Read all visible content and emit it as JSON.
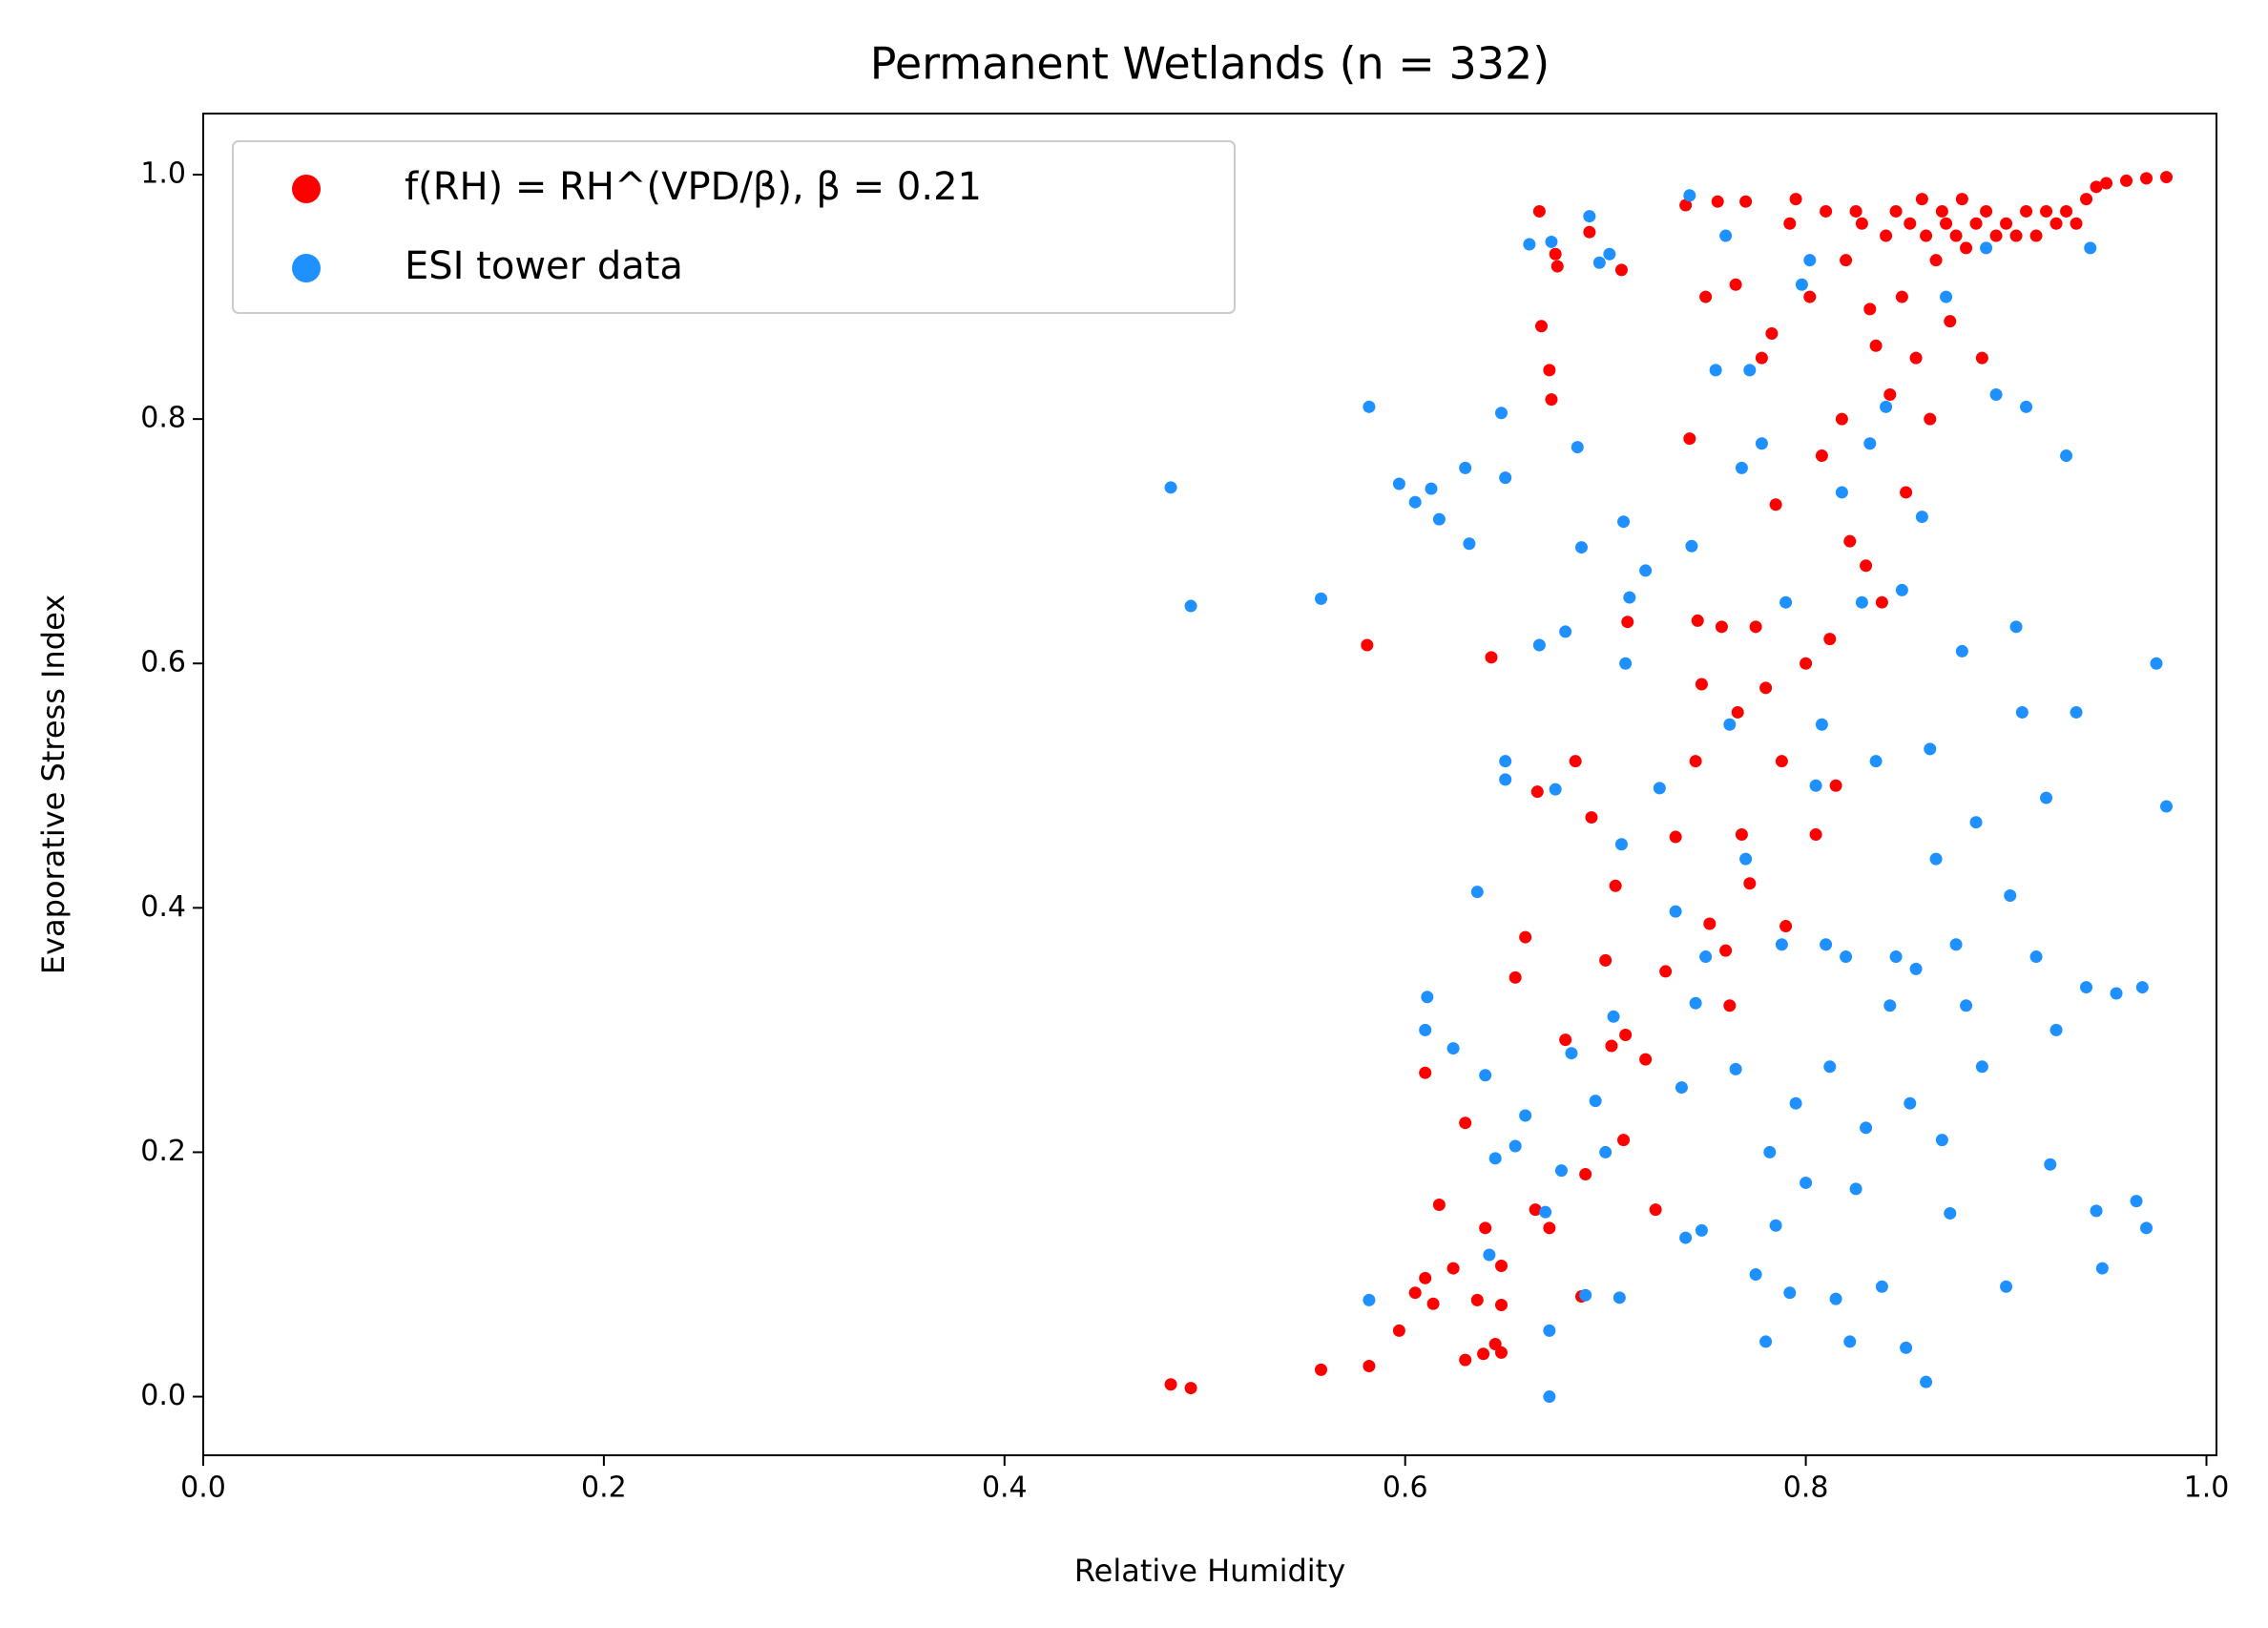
{
  "chart_data": {
    "type": "scatter",
    "title": "Permanent Wetlands (n = 332)",
    "x_label": "Relative Humidity",
    "y_label": "Evaporative Stress Index",
    "xlim": [
      0,
      1.005
    ],
    "ylim": [
      -0.048,
      1.05
    ],
    "xticks": [
      {
        "value": 0,
        "label": "0.0"
      },
      0.2,
      0.4,
      0.6,
      0.8,
      {
        "value": 1,
        "label": "1.0"
      }
    ],
    "yticks": [
      {
        "value": 0,
        "label": "0.0"
      },
      0.2,
      0.4,
      0.6,
      0.8,
      {
        "value": 1,
        "label": "1.0"
      }
    ],
    "grid": false,
    "legend": "upper left",
    "series": [
      {
        "name": "f(RH) = RH^(VPD/β), β = 0.21",
        "color": "#ff0000",
        "x": [
          0.483,
          0.493,
          0.558,
          0.582,
          0.581,
          0.597,
          0.605,
          0.61,
          0.61,
          0.614,
          0.617,
          0.624,
          0.63,
          0.63,
          0.636,
          0.639,
          0.64,
          0.643,
          0.645,
          0.648,
          0.648,
          0.648,
          0.655,
          0.66,
          0.665,
          0.666,
          0.667,
          0.668,
          0.672,
          0.672,
          0.673,
          0.675,
          0.676,
          0.68,
          0.685,
          0.688,
          0.69,
          0.692,
          0.693,
          0.7,
          0.703,
          0.705,
          0.708,
          0.709,
          0.71,
          0.711,
          0.72,
          0.725,
          0.73,
          0.735,
          0.74,
          0.742,
          0.745,
          0.746,
          0.748,
          0.75,
          0.752,
          0.756,
          0.758,
          0.76,
          0.762,
          0.765,
          0.766,
          0.768,
          0.77,
          0.772,
          0.775,
          0.778,
          0.78,
          0.783,
          0.785,
          0.788,
          0.79,
          0.792,
          0.795,
          0.8,
          0.802,
          0.805,
          0.808,
          0.81,
          0.812,
          0.815,
          0.818,
          0.82,
          0.822,
          0.825,
          0.828,
          0.83,
          0.832,
          0.835,
          0.838,
          0.84,
          0.842,
          0.845,
          0.848,
          0.85,
          0.852,
          0.855,
          0.858,
          0.86,
          0.862,
          0.865,
          0.868,
          0.87,
          0.872,
          0.875,
          0.878,
          0.88,
          0.885,
          0.888,
          0.89,
          0.895,
          0.9,
          0.905,
          0.91,
          0.915,
          0.92,
          0.925,
          0.93,
          0.935,
          0.94,
          0.945,
          0.95,
          0.96,
          0.97,
          0.98
        ],
        "values": [
          0.01,
          0.007,
          0.022,
          0.025,
          0.615,
          0.054,
          0.085,
          0.097,
          0.265,
          0.076,
          0.157,
          0.105,
          0.224,
          0.03,
          0.079,
          0.035,
          0.138,
          0.605,
          0.043,
          0.036,
          0.075,
          0.107,
          0.343,
          0.376,
          0.153,
          0.495,
          0.97,
          0.876,
          0.138,
          0.84,
          0.816,
          0.935,
          0.925,
          0.292,
          0.52,
          0.082,
          0.182,
          0.953,
          0.474,
          0.357,
          0.287,
          0.418,
          0.922,
          0.21,
          0.296,
          0.634,
          0.276,
          0.153,
          0.348,
          0.458,
          0.975,
          0.784,
          0.52,
          0.635,
          0.583,
          0.9,
          0.387,
          0.978,
          0.63,
          0.365,
          0.32,
          0.91,
          0.56,
          0.46,
          0.978,
          0.42,
          0.63,
          0.85,
          0.58,
          0.87,
          0.73,
          0.52,
          0.385,
          0.96,
          0.98,
          0.6,
          0.9,
          0.46,
          0.77,
          0.97,
          0.62,
          0.5,
          0.8,
          0.93,
          0.7,
          0.97,
          0.96,
          0.68,
          0.89,
          0.86,
          0.65,
          0.95,
          0.82,
          0.97,
          0.9,
          0.74,
          0.96,
          0.85,
          0.98,
          0.95,
          0.8,
          0.93,
          0.97,
          0.96,
          0.88,
          0.95,
          0.98,
          0.94,
          0.96,
          0.85,
          0.97,
          0.95,
          0.96,
          0.95,
          0.97,
          0.95,
          0.97,
          0.96,
          0.97,
          0.96,
          0.98,
          0.99,
          0.993,
          0.995,
          0.997,
          0.998
        ]
      },
      {
        "name": "ESI tower data",
        "color": "#1e90ff",
        "x": [
          0.483,
          0.493,
          0.558,
          0.582,
          0.582,
          0.597,
          0.605,
          0.61,
          0.611,
          0.613,
          0.617,
          0.624,
          0.63,
          0.632,
          0.636,
          0.64,
          0.642,
          0.645,
          0.648,
          0.65,
          0.65,
          0.65,
          0.655,
          0.66,
          0.662,
          0.667,
          0.67,
          0.672,
          0.672,
          0.673,
          0.675,
          0.678,
          0.68,
          0.683,
          0.686,
          0.688,
          0.69,
          0.692,
          0.695,
          0.697,
          0.7,
          0.702,
          0.704,
          0.707,
          0.708,
          0.709,
          0.71,
          0.712,
          0.72,
          0.727,
          0.735,
          0.738,
          0.74,
          0.742,
          0.743,
          0.745,
          0.748,
          0.75,
          0.755,
          0.76,
          0.762,
          0.765,
          0.768,
          0.77,
          0.772,
          0.775,
          0.778,
          0.78,
          0.782,
          0.785,
          0.788,
          0.79,
          0.792,
          0.795,
          0.798,
          0.8,
          0.802,
          0.805,
          0.808,
          0.81,
          0.812,
          0.815,
          0.818,
          0.82,
          0.822,
          0.825,
          0.828,
          0.83,
          0.832,
          0.835,
          0.838,
          0.84,
          0.842,
          0.845,
          0.848,
          0.85,
          0.852,
          0.855,
          0.858,
          0.86,
          0.862,
          0.865,
          0.868,
          0.87,
          0.872,
          0.875,
          0.878,
          0.88,
          0.885,
          0.888,
          0.89,
          0.895,
          0.9,
          0.902,
          0.905,
          0.908,
          0.91,
          0.915,
          0.92,
          0.922,
          0.925,
          0.93,
          0.935,
          0.94,
          0.942,
          0.945,
          0.948,
          0.955,
          0.965,
          0.968,
          0.97,
          0.975,
          0.98
        ],
        "values": [
          0.744,
          0.647,
          0.653,
          0.079,
          0.81,
          0.747,
          0.732,
          0.3,
          0.327,
          0.743,
          0.718,
          0.285,
          0.76,
          0.698,
          0.413,
          0.263,
          0.116,
          0.195,
          0.805,
          0.52,
          0.505,
          0.752,
          0.205,
          0.23,
          0.943,
          0.615,
          0.151,
          0.054,
          0.0,
          0.945,
          0.497,
          0.185,
          0.626,
          0.281,
          0.777,
          0.695,
          0.083,
          0.966,
          0.242,
          0.928,
          0.2,
          0.935,
          0.311,
          0.081,
          0.452,
          0.716,
          0.6,
          0.654,
          0.676,
          0.498,
          0.397,
          0.253,
          0.13,
          0.983,
          0.696,
          0.322,
          0.136,
          0.36,
          0.84,
          0.95,
          0.55,
          0.268,
          0.76,
          0.44,
          0.84,
          0.1,
          0.78,
          0.045,
          0.2,
          0.14,
          0.37,
          0.65,
          0.085,
          0.24,
          0.91,
          0.175,
          0.93,
          0.5,
          0.55,
          0.37,
          0.27,
          0.08,
          0.74,
          0.36,
          0.045,
          0.17,
          0.65,
          0.22,
          0.78,
          0.52,
          0.09,
          0.81,
          0.32,
          0.36,
          0.66,
          0.04,
          0.24,
          0.35,
          0.72,
          0.012,
          0.53,
          0.44,
          0.21,
          0.9,
          0.15,
          0.37,
          0.61,
          0.32,
          0.47,
          0.27,
          0.94,
          0.82,
          0.09,
          0.41,
          0.63,
          0.56,
          0.81,
          0.36,
          0.49,
          0.19,
          0.3,
          0.77,
          0.56,
          0.335,
          0.94,
          0.152,
          0.105,
          0.33,
          0.16,
          0.335,
          0.138,
          0.6,
          0.483
        ]
      }
    ]
  }
}
